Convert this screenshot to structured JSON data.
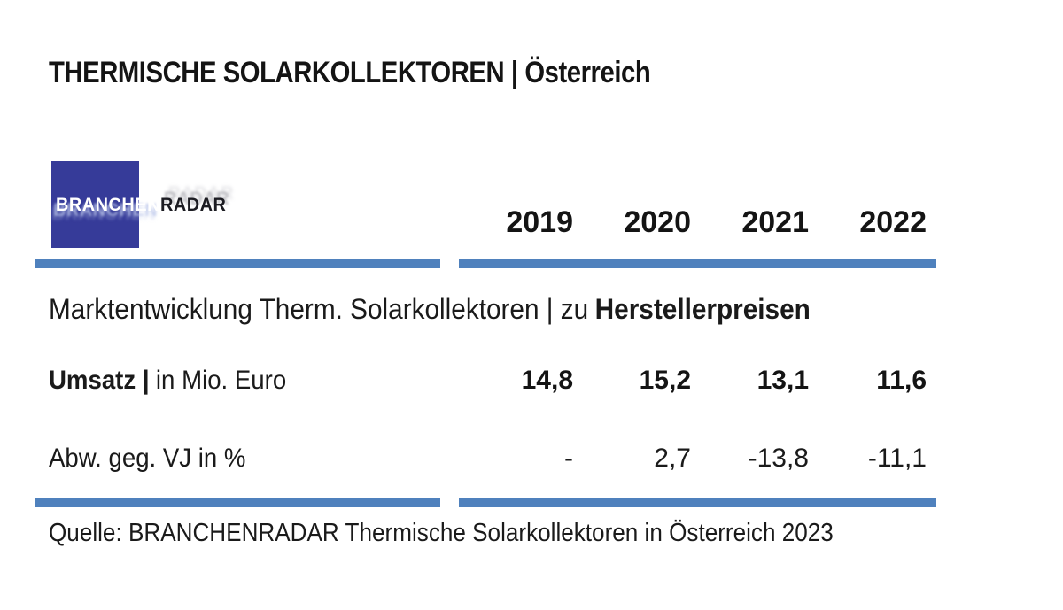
{
  "page": {
    "title": "THERMISCHE SOLARKOLLEKTOREN | Österreich",
    "source_line": "Quelle: BRANCHENRADAR Thermische Solarkollektoren in Österreich 2023"
  },
  "logo": {
    "text_primary": "BRANCHEN",
    "text_secondary": "RADAR"
  },
  "colors": {
    "divider_blue": "#4F81BD",
    "logo_blue": "#363B99",
    "text": "#1A1A1A"
  },
  "section": {
    "heading_regular": "Marktentwicklung Therm. Solarkollektoren | zu",
    "heading_bold": "Herstellerpreisen"
  },
  "table": {
    "years": [
      "2019",
      "2020",
      "2021",
      "2022"
    ],
    "umsatz": {
      "label_bold": "Umsatz |",
      "label_rest": "in Mio. Euro",
      "values": [
        "14,8",
        "15,2",
        "13,1",
        "11,6"
      ]
    },
    "abw": {
      "label": "Abw. geg. VJ in %",
      "values": [
        "-",
        "2,7",
        "-13,8",
        "-11,1"
      ]
    }
  },
  "chart_data": {
    "type": "table",
    "title": "THERMISCHE SOLARKOLLEKTOREN | Österreich",
    "section_heading": "Marktentwicklung Therm. Solarkollektoren | zu Herstellerpreisen",
    "columns": [
      "2019",
      "2020",
      "2021",
      "2022"
    ],
    "rows": [
      {
        "label": "Umsatz | in Mio. Euro",
        "values": [
          14.8,
          15.2,
          13.1,
          11.6
        ]
      },
      {
        "label": "Abw. geg. VJ in %",
        "values": [
          null,
          2.7,
          -13.8,
          -11.1
        ]
      }
    ],
    "source": "Quelle: BRANCHENRADAR Thermische Solarkollektoren in Österreich 2023"
  }
}
